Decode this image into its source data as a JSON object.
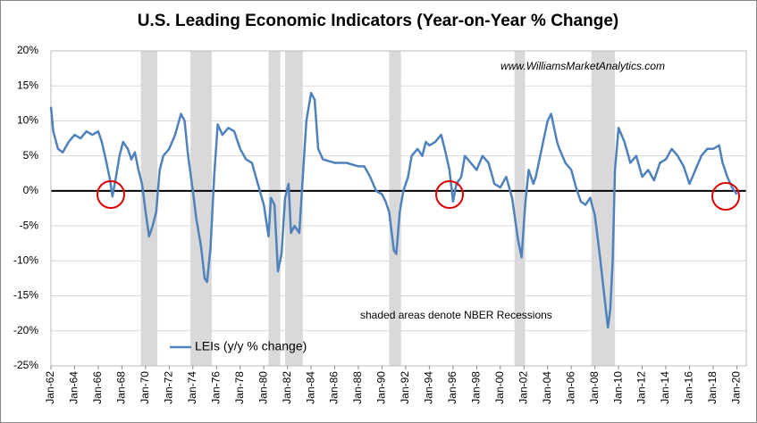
{
  "chart_data": {
    "type": "line",
    "title": "U.S. Leading Economic Indicators (Year-on-Year % Change)",
    "watermark": "www.WilliamsMarketAnalytics.com",
    "annotation": "shaded areas denote NBER Recessions",
    "legend": "lower left",
    "grid": true,
    "xlim": [
      1962,
      2020.8
    ],
    "xticks": [
      {
        "value": 1962,
        "label": "Jan-62"
      },
      {
        "value": 1964,
        "label": "Jan-64"
      },
      {
        "value": 1966,
        "label": "Jan-66"
      },
      {
        "value": 1968,
        "label": "Jan-68"
      },
      {
        "value": 1970,
        "label": "Jan-70"
      },
      {
        "value": 1972,
        "label": "Jan-72"
      },
      {
        "value": 1974,
        "label": "Jan-74"
      },
      {
        "value": 1976,
        "label": "Jan-76"
      },
      {
        "value": 1978,
        "label": "Jan-78"
      },
      {
        "value": 1980,
        "label": "Jan-80"
      },
      {
        "value": 1982,
        "label": "Jan-82"
      },
      {
        "value": 1984,
        "label": "Jan-84"
      },
      {
        "value": 1986,
        "label": "Jan-86"
      },
      {
        "value": 1988,
        "label": "Jan-88"
      },
      {
        "value": 1990,
        "label": "Jan-90"
      },
      {
        "value": 1992,
        "label": "Jan-92"
      },
      {
        "value": 1994,
        "label": "Jan-94"
      },
      {
        "value": 1996,
        "label": "Jan-96"
      },
      {
        "value": 1998,
        "label": "Jan-98"
      },
      {
        "value": 2000,
        "label": "Jan-00"
      },
      {
        "value": 2002,
        "label": "Jan-02"
      },
      {
        "value": 2004,
        "label": "Jan-04"
      },
      {
        "value": 2006,
        "label": "Jan-06"
      },
      {
        "value": 2008,
        "label": "Jan-08"
      },
      {
        "value": 2010,
        "label": "Jan-10"
      },
      {
        "value": 2012,
        "label": "Jan-12"
      },
      {
        "value": 2014,
        "label": "Jan-14"
      },
      {
        "value": 2016,
        "label": "Jan-16"
      },
      {
        "value": 2018,
        "label": "Jan-18"
      },
      {
        "value": 2020,
        "label": "Jan-20"
      }
    ],
    "ylim": [
      -25,
      20
    ],
    "yticks": [
      {
        "value": 20,
        "label": "20%"
      },
      {
        "value": 15,
        "label": "15%"
      },
      {
        "value": 10,
        "label": "10%"
      },
      {
        "value": 5,
        "label": "5%"
      },
      {
        "value": 0,
        "label": "0%"
      },
      {
        "value": -5,
        "label": "-5%"
      },
      {
        "value": -10,
        "label": "-10%"
      },
      {
        "value": -15,
        "label": "-15%"
      },
      {
        "value": -20,
        "label": "-20%"
      },
      {
        "value": -25,
        "label": "-25%"
      }
    ],
    "recession_color": "#d9d9d9",
    "recessions": [
      [
        1969.6,
        1971.0
      ],
      [
        1973.8,
        1975.6
      ],
      [
        1980.4,
        1981.4
      ],
      [
        1981.8,
        1983.3
      ],
      [
        1990.6,
        1991.6
      ],
      [
        2001.2,
        2002.1
      ],
      [
        2007.7,
        2009.7
      ]
    ],
    "series": [
      {
        "name": "LEIs (y/y % change)",
        "color": "#4f81bd",
        "x": [
          1962.0,
          1962.2,
          1962.6,
          1963,
          1963.5,
          1964,
          1964.5,
          1965,
          1965.5,
          1966,
          1966.3,
          1966.7,
          1967,
          1967.2,
          1967.5,
          1967.8,
          1968.1,
          1968.5,
          1968.8,
          1969.1,
          1969.4,
          1969.7,
          1970.0,
          1970.3,
          1970.6,
          1970.9,
          1971.2,
          1971.5,
          1972,
          1972.5,
          1973,
          1973.3,
          1973.6,
          1974,
          1974.3,
          1974.7,
          1975,
          1975.2,
          1975.5,
          1975.8,
          1976.1,
          1976.5,
          1977,
          1977.5,
          1978,
          1978.5,
          1979,
          1979.5,
          1980,
          1980.4,
          1980.6,
          1980.9,
          1981.2,
          1981.5,
          1981.8,
          1982.1,
          1982.3,
          1982.6,
          1983,
          1983.3,
          1983.6,
          1984,
          1984.3,
          1984.6,
          1985,
          1986,
          1987,
          1988,
          1988.5,
          1989,
          1989.5,
          1990,
          1990.3,
          1990.6,
          1991,
          1991.2,
          1991.5,
          1991.8,
          1992.2,
          1992.5,
          1993,
          1993.4,
          1993.7,
          1994,
          1994.5,
          1995,
          1995.3,
          1995.7,
          1996,
          1996.3,
          1996.7,
          1997,
          1997.5,
          1998,
          1998.5,
          1999,
          1999.5,
          2000,
          2000.5,
          2001,
          2001.5,
          2001.8,
          2002.1,
          2002.4,
          2002.8,
          2003,
          2003.5,
          2004,
          2004.3,
          2004.8,
          2005,
          2005.5,
          2006,
          2006.4,
          2006.8,
          2007.2,
          2007.6,
          2008,
          2008.4,
          2008.8,
          2009.1,
          2009.3,
          2009.5,
          2009.7,
          2010,
          2010.5,
          2011,
          2011.5,
          2012,
          2012.5,
          2013,
          2013.5,
          2014,
          2014.5,
          2015,
          2015.5,
          2016,
          2016.5,
          2017,
          2017.5,
          2018,
          2018.5,
          2018.8,
          2019.2,
          2019.6,
          2020
        ],
        "values": [
          12,
          8.5,
          6,
          5.5,
          7,
          8,
          7.5,
          8.5,
          8,
          8.5,
          7,
          4,
          1.5,
          -0.8,
          2,
          5,
          7,
          6,
          4.5,
          5.5,
          3,
          1,
          -3,
          -6.5,
          -5,
          -3,
          3,
          5,
          6,
          8,
          11,
          10,
          5,
          0,
          -4,
          -8,
          -12.5,
          -13,
          -8,
          2,
          9.5,
          8,
          9,
          8.5,
          6,
          4.5,
          4,
          1,
          -2,
          -6.5,
          -1,
          -2,
          -11.5,
          -9,
          -1,
          1,
          -6,
          -5,
          -6,
          2,
          10,
          14,
          13,
          6,
          4.5,
          4,
          4,
          3.5,
          3.5,
          2,
          0,
          -0.5,
          -1.5,
          -3,
          -8.5,
          -9,
          -3,
          0,
          2,
          5,
          6,
          5,
          7,
          6.5,
          7,
          8,
          6,
          3,
          -1.5,
          1,
          2,
          5,
          4,
          3,
          5,
          4,
          1,
          0.5,
          2,
          -1,
          -7,
          -9.5,
          -2,
          3,
          1,
          2,
          6,
          10,
          11,
          7,
          6,
          4,
          3,
          0.5,
          -1.5,
          -2,
          -1,
          -3.5,
          -9,
          -15,
          -19.5,
          -17,
          -10,
          3,
          9,
          7,
          4,
          5,
          2,
          3,
          1.5,
          4,
          4.5,
          6,
          5,
          3.5,
          1,
          3,
          5,
          6,
          6,
          6.5,
          4,
          2,
          0.5,
          -0.5
        ]
      }
    ]
  }
}
